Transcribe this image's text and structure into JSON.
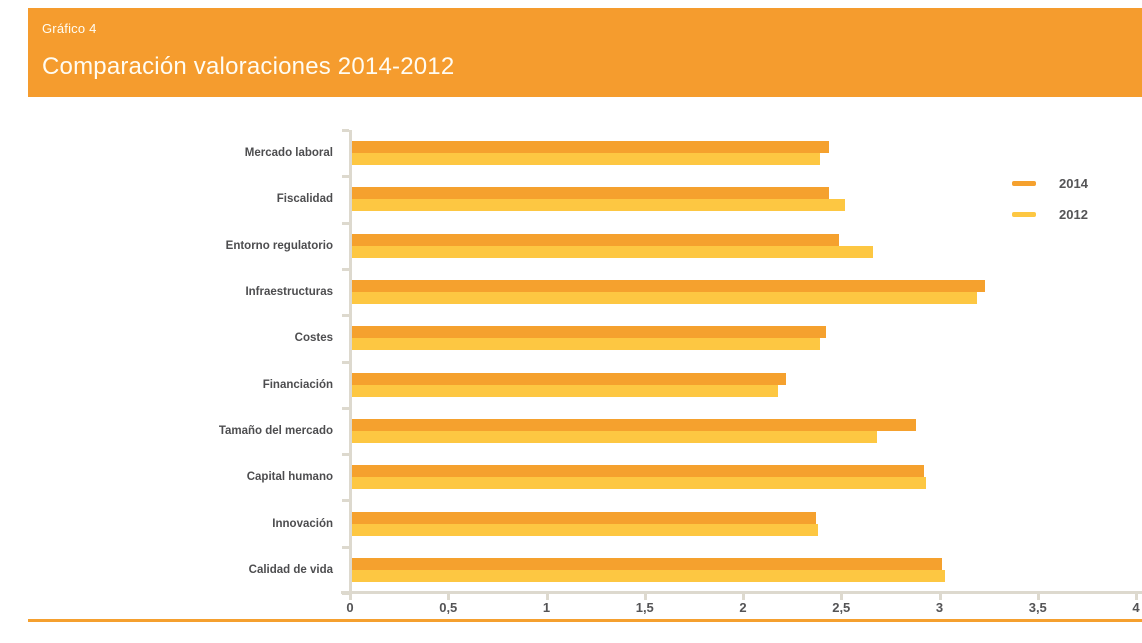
{
  "header": {
    "kicker": "Gráfico 4",
    "title": "Comparación valoraciones 2014-2012"
  },
  "colors": {
    "header_bg": "#F59C2E",
    "series_2014": "#F5A12E",
    "series_2012": "#FDC742",
    "axis": "#DDD9CE",
    "category_text": "#4D4D4F",
    "tick_text": "#545456",
    "bottom_rule": "#F5A02F"
  },
  "legend": {
    "position": "right",
    "items": [
      {
        "label": "2014",
        "color": "#F5A12E"
      },
      {
        "label": "2012",
        "color": "#FDC742"
      }
    ]
  },
  "chart_data": {
    "type": "bar",
    "orientation": "horizontal",
    "title": "Comparación valoraciones 2014-2012",
    "xlabel": "",
    "ylabel": "",
    "grid": false,
    "xlim": [
      0,
      4
    ],
    "xticks": [
      0,
      0.5,
      1,
      1.5,
      2,
      2.5,
      3,
      3.5,
      4
    ],
    "xtick_labels": [
      "0",
      "0,5",
      "1",
      "1,5",
      "2",
      "2,5",
      "3",
      "3,5",
      "4"
    ],
    "categories": [
      "Mercado laboral",
      "Fiscalidad",
      "Entorno regulatorio",
      "Infraestructuras",
      "Costes",
      "Financiación",
      "Tamaño del mercado",
      "Capital humano",
      "Innovación",
      "Calidad de vida"
    ],
    "series": [
      {
        "name": "2014",
        "color": "#F5A12E",
        "values": [
          2.43,
          2.43,
          2.48,
          3.22,
          2.41,
          2.21,
          2.87,
          2.91,
          2.36,
          3.0
        ]
      },
      {
        "name": "2012",
        "color": "#FDC742",
        "values": [
          2.38,
          2.51,
          2.65,
          3.18,
          2.38,
          2.17,
          2.67,
          2.92,
          2.37,
          3.02
        ]
      }
    ],
    "legend_position": "right"
  }
}
